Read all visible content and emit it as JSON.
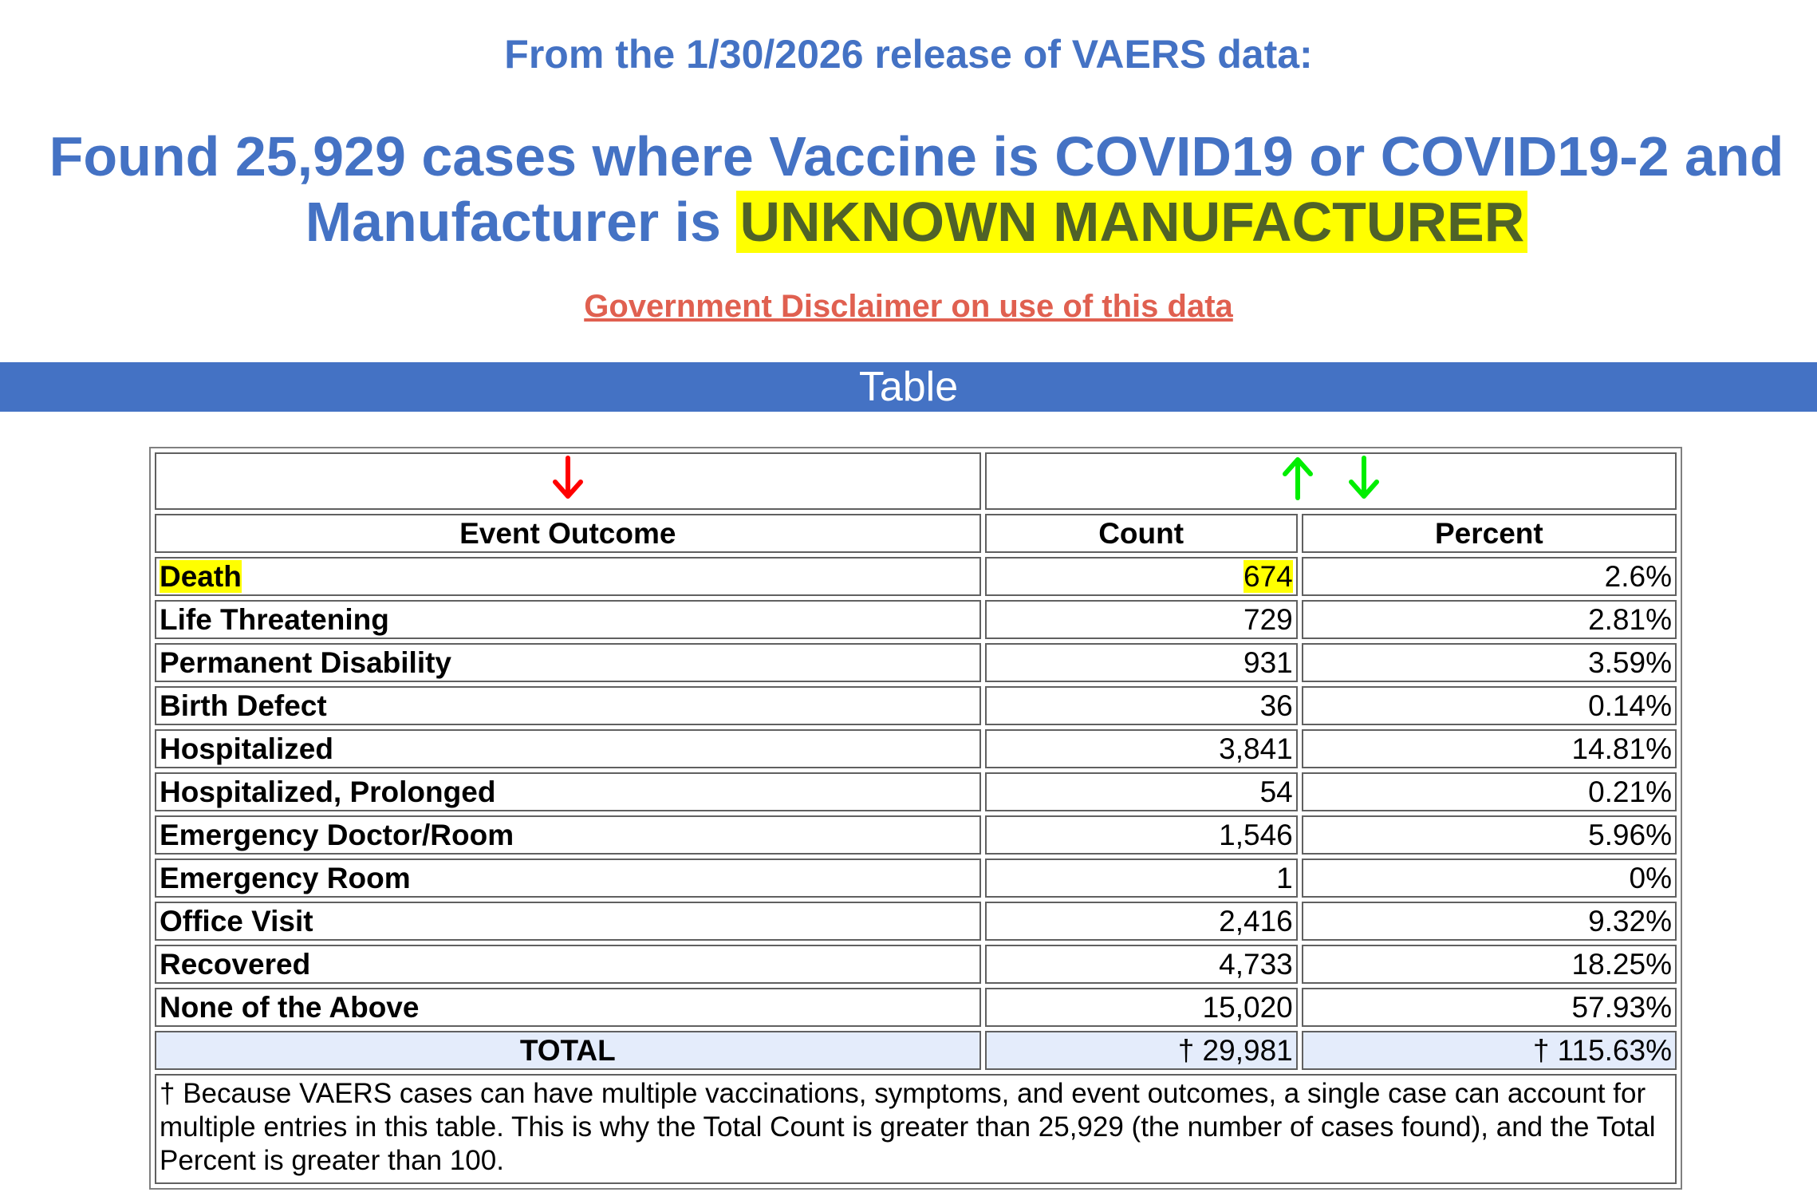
{
  "header": {
    "release": "From the 1/30/2026 release of VAERS data:",
    "found_prefix": "Found 25,929 cases where Vaccine is COVID19 or COVID19-2 and",
    "found_manufacturer_label": "Manufacturer is",
    "found_manufacturer_value": "UNKNOWN MANUFACTURER",
    "disclaimer_link": "Government Disclaimer on use of this data"
  },
  "banner": {
    "title": "Table"
  },
  "icons": {
    "sort_outcome": "red-down-arrow-icon",
    "sort_ascending": "green-up-arrow-icon",
    "sort_descending": "green-down-arrow-icon"
  },
  "colors": {
    "title_blue": "#4472c4",
    "link_red": "#e06050",
    "highlight_yellow": "#ffff00",
    "arrow_red": "#ff0000",
    "arrow_green": "#00ff00",
    "total_row_bg": "#e4ecfb"
  },
  "table": {
    "columns": [
      "Event Outcome",
      "Count",
      "Percent"
    ],
    "rows": [
      {
        "outcome": "Death",
        "count": "674",
        "percent": "2.6%"
      },
      {
        "outcome": "Life Threatening",
        "count": "729",
        "percent": "2.81%"
      },
      {
        "outcome": "Permanent Disability",
        "count": "931",
        "percent": "3.59%"
      },
      {
        "outcome": "Birth Defect",
        "count": "36",
        "percent": "0.14%"
      },
      {
        "outcome": "Hospitalized",
        "count": "3,841",
        "percent": "14.81%"
      },
      {
        "outcome": "Hospitalized, Prolonged",
        "count": "54",
        "percent": "0.21%"
      },
      {
        "outcome": "Emergency Doctor/Room",
        "count": "1,546",
        "percent": "5.96%"
      },
      {
        "outcome": "Emergency Room",
        "count": "1",
        "percent": "0%"
      },
      {
        "outcome": "Office Visit",
        "count": "2,416",
        "percent": "9.32%"
      },
      {
        "outcome": "Recovered",
        "count": "4,733",
        "percent": "18.25%"
      },
      {
        "outcome": "None of the Above",
        "count": "15,020",
        "percent": "57.93%"
      }
    ],
    "total": {
      "label": "TOTAL",
      "count": "† 29,981",
      "percent": "† 115.63%"
    },
    "footnote": "† Because VAERS cases can have multiple vaccinations, symptoms, and event outcomes, a single case can account for multiple entries in this table. This is why the Total Count is greater than 25,929 (the number of cases found), and the Total Percent is greater than 100."
  }
}
